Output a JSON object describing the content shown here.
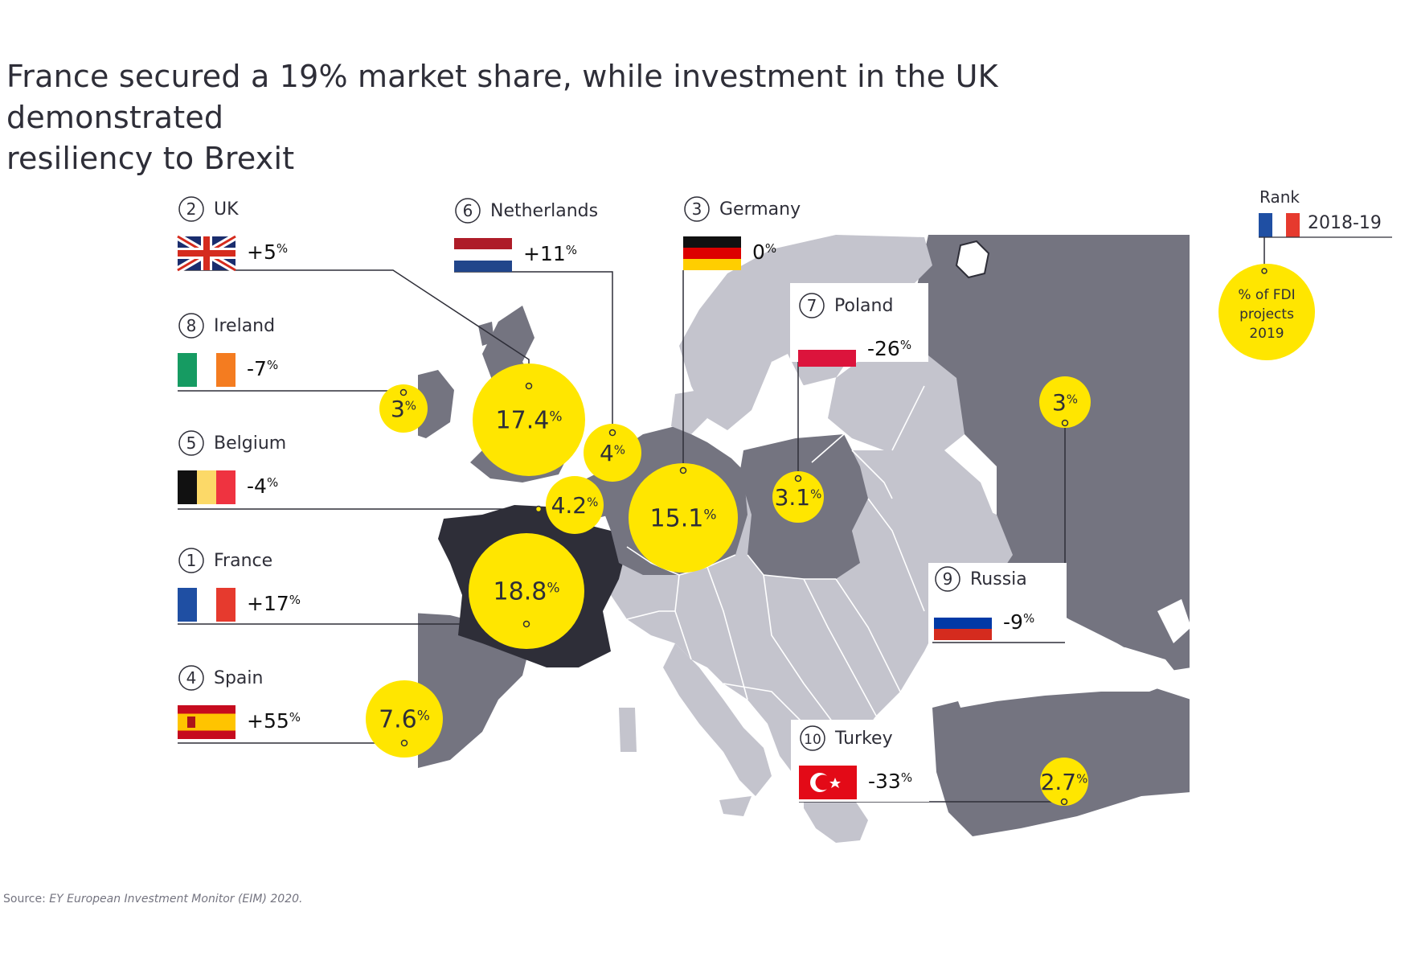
{
  "title": {
    "line1": "France secured a 19% market share, while investment in the UK demonstrated",
    "line2": "resiliency to Brexit"
  },
  "source": {
    "prefix": "Source: ",
    "text": "EY European Investment Monitor (EIM) 2020."
  },
  "legend": {
    "rank_label": "Rank",
    "period": "2018-19",
    "bubble_line1": "% of FDI",
    "bubble_line2": "projects",
    "bubble_line3": "2019",
    "flag": "france"
  },
  "colors": {
    "bubble": "#ffe600",
    "land_light": "#c4c4cd",
    "land_mid": "#747480",
    "land_dark": "#2e2e38",
    "text": "#2e2e38"
  },
  "countries": [
    {
      "rank": "2",
      "name": "UK",
      "change_value": "+5",
      "change_unit": "%",
      "share_value": "17.4",
      "share_unit": "%",
      "flag": "uk"
    },
    {
      "rank": "8",
      "name": "Ireland",
      "change_value": "-7",
      "change_unit": "%",
      "share_value": "3",
      "share_unit": "%",
      "flag": "ireland"
    },
    {
      "rank": "5",
      "name": "Belgium",
      "change_value": "-4",
      "change_unit": "%",
      "share_value": "4.2",
      "share_unit": "%",
      "flag": "belgium"
    },
    {
      "rank": "1",
      "name": "France",
      "change_value": "+17",
      "change_unit": "%",
      "share_value": "18.8",
      "share_unit": "%",
      "flag": "france"
    },
    {
      "rank": "4",
      "name": "Spain",
      "change_value": "+55",
      "change_unit": "%",
      "share_value": "7.6",
      "share_unit": "%",
      "flag": "spain"
    },
    {
      "rank": "6",
      "name": "Netherlands",
      "change_value": "+11",
      "change_unit": "%",
      "share_value": "4",
      "share_unit": "%",
      "flag": "netherlands"
    },
    {
      "rank": "3",
      "name": "Germany",
      "change_value": "0",
      "change_unit": "%",
      "share_value": "15.1",
      "share_unit": "%",
      "flag": "germany"
    },
    {
      "rank": "7",
      "name": "Poland",
      "change_value": "-26",
      "change_unit": "%",
      "share_value": "3.1",
      "share_unit": "%",
      "flag": "poland"
    },
    {
      "rank": "9",
      "name": "Russia",
      "change_value": "-9",
      "change_unit": "%",
      "share_value": "3",
      "share_unit": "%",
      "flag": "russia"
    },
    {
      "rank": "10",
      "name": "Turkey",
      "change_value": "-33",
      "change_unit": "%",
      "share_value": "2.7",
      "share_unit": "%",
      "flag": "turkey"
    }
  ]
}
